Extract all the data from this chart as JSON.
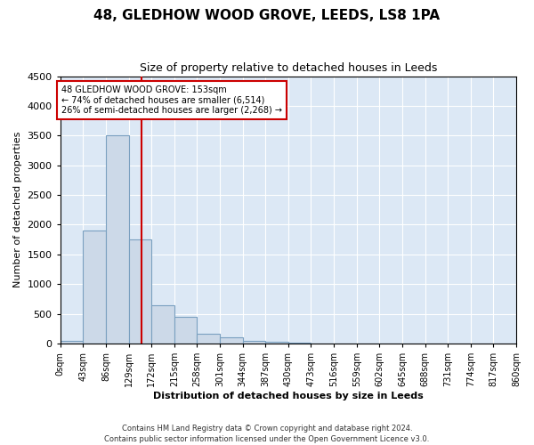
{
  "title": "48, GLEDHOW WOOD GROVE, LEEDS, LS8 1PA",
  "subtitle": "Size of property relative to detached houses in Leeds",
  "xlabel": "Distribution of detached houses by size in Leeds",
  "ylabel": "Number of detached properties",
  "bar_color": "#ccd9e8",
  "bar_edge_color": "#7aa0c0",
  "background_color": "#dce8f5",
  "grid_color": "#ffffff",
  "annotation_box_color": "#cc0000",
  "vline_color": "#cc0000",
  "vline_x": 153,
  "annotation_title": "48 GLEDHOW WOOD GROVE: 153sqm",
  "annotation_line1": "← 74% of detached houses are smaller (6,514)",
  "annotation_line2": "26% of semi-detached houses are larger (2,268) →",
  "footer": "Contains HM Land Registry data © Crown copyright and database right 2024.\nContains public sector information licensed under the Open Government Licence v3.0.",
  "bin_edges": [
    0,
    43,
    86,
    129,
    172,
    215,
    258,
    301,
    344,
    387,
    430,
    473,
    516,
    559,
    602,
    645,
    688,
    731,
    774,
    817,
    860
  ],
  "bar_heights": [
    50,
    1900,
    3500,
    1750,
    650,
    450,
    165,
    100,
    50,
    30,
    15,
    0,
    0,
    0,
    0,
    0,
    0,
    0,
    0,
    0
  ],
  "ylim": [
    0,
    4500
  ],
  "yticks": [
    0,
    500,
    1000,
    1500,
    2000,
    2500,
    3000,
    3500,
    4000,
    4500
  ],
  "figsize": [
    6.0,
    5.0
  ],
  "dpi": 100
}
